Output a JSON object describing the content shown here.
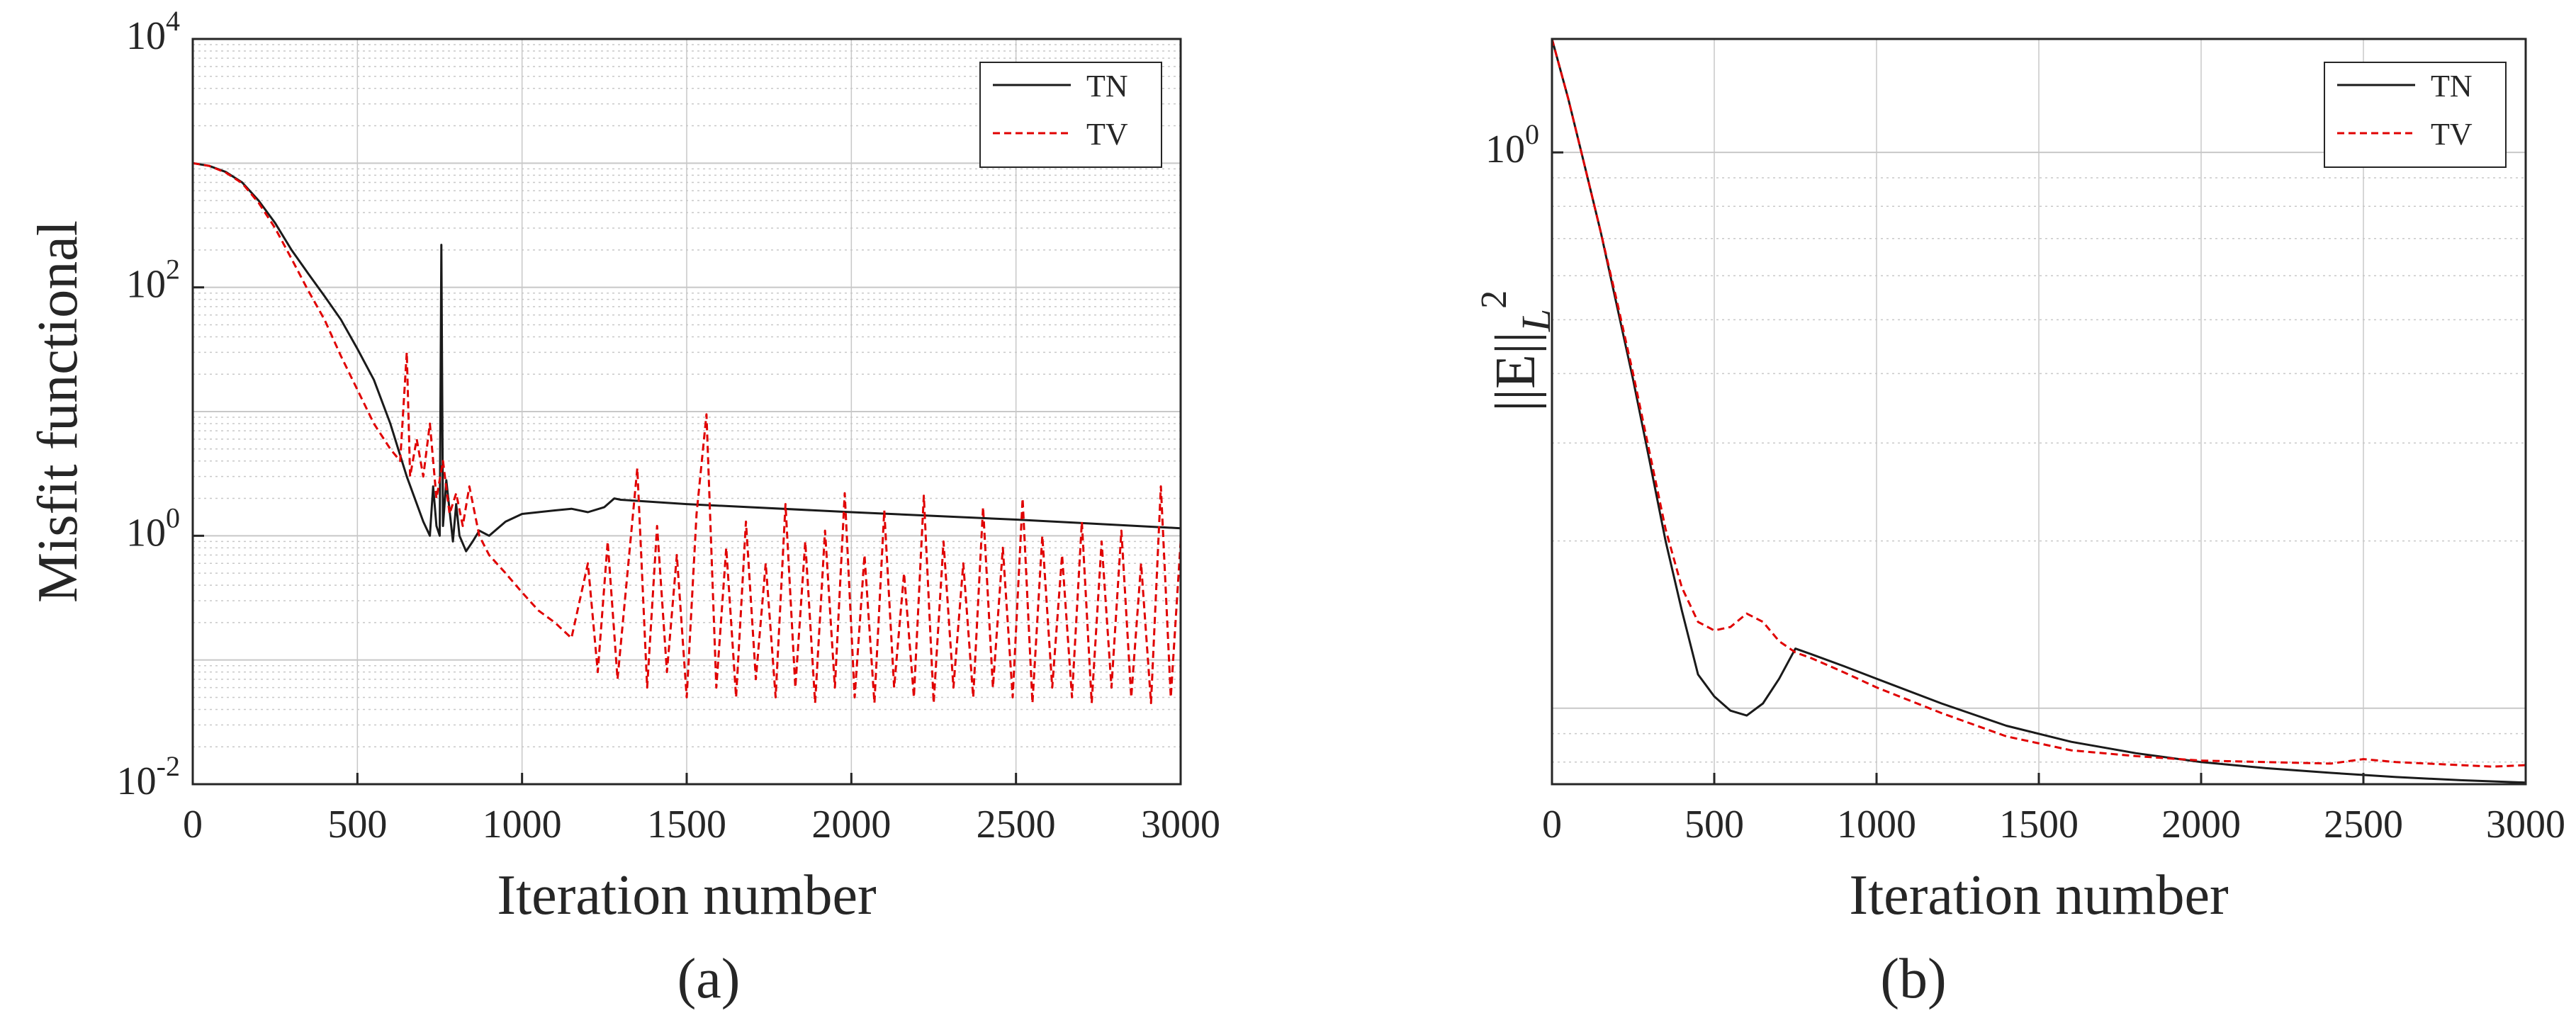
{
  "colors": {
    "tn": "#1a1a1a",
    "tv": "#e00000",
    "grid": "#c8c8c8",
    "axis": "#262626"
  },
  "panel_labels": [
    "(a)",
    "(b)"
  ],
  "chart_data": [
    {
      "type": "line",
      "scale_y": "log",
      "xlabel": "Iteration number",
      "ylabel": "Misfit functional",
      "xlim": [
        0,
        3000
      ],
      "ylim": [
        0.01,
        10000
      ],
      "xticks": [
        0,
        500,
        1000,
        1500,
        2000,
        2500,
        3000
      ],
      "xtick_labels": [
        "0",
        "500",
        "1000",
        "1500",
        "2000",
        "2500",
        "3000"
      ],
      "yticks": [
        {
          "value": 0.01,
          "base": "10",
          "exp": "-2"
        },
        {
          "value": 1,
          "base": "10",
          "exp": "0"
        },
        {
          "value": 100,
          "base": "10",
          "exp": "2"
        },
        {
          "value": 10000,
          "base": "10",
          "exp": "4"
        }
      ],
      "legend": {
        "position": "top-right",
        "entries": [
          "TN",
          "TV"
        ]
      },
      "series": [
        {
          "name": "TN",
          "style": "solid",
          "x": [
            0,
            50,
            100,
            150,
            200,
            250,
            300,
            350,
            400,
            450,
            500,
            550,
            600,
            650,
            700,
            720,
            730,
            740,
            750,
            755,
            760,
            770,
            790,
            800,
            810,
            830,
            850,
            870,
            900,
            950,
            1000,
            1050,
            1100,
            1150,
            1200,
            1250,
            1280,
            1300,
            1500,
            2000,
            2500,
            3000
          ],
          "y": [
            1000,
            950,
            850,
            700,
            500,
            330,
            200,
            130,
            85,
            55,
            32,
            18,
            8,
            3,
            1.3,
            1.0,
            2.5,
            1.2,
            1.0,
            220,
            1.2,
            2.8,
            0.9,
            1.8,
            1.0,
            0.75,
            0.9,
            1.1,
            1.0,
            1.3,
            1.5,
            1.55,
            1.6,
            1.65,
            1.55,
            1.7,
            2.0,
            1.95,
            1.8,
            1.55,
            1.35,
            1.15
          ]
        },
        {
          "name": "TV",
          "style": "dashed",
          "x": [
            0,
            50,
            100,
            150,
            200,
            250,
            300,
            350,
            400,
            450,
            500,
            550,
            600,
            630,
            650,
            660,
            680,
            700,
            720,
            740,
            760,
            780,
            800,
            820,
            840,
            870,
            900,
            950,
            1000,
            1050,
            1100,
            1150,
            1200,
            1230,
            1260,
            1290,
            1320,
            1350,
            1380,
            1410,
            1440,
            1470,
            1500,
            1530,
            1560,
            1590,
            1620,
            1650,
            1680,
            1710,
            1740,
            1770,
            1800,
            1830,
            1860,
            1890,
            1920,
            1950,
            1980,
            2010,
            2040,
            2070,
            2100,
            2130,
            2160,
            2190,
            2220,
            2250,
            2280,
            2310,
            2340,
            2370,
            2400,
            2430,
            2460,
            2490,
            2520,
            2550,
            2580,
            2610,
            2640,
            2670,
            2700,
            2730,
            2760,
            2790,
            2820,
            2850,
            2880,
            2910,
            2940,
            2970,
            3000
          ],
          "y": [
            1000,
            950,
            840,
            690,
            480,
            300,
            170,
            95,
            55,
            28,
            15,
            8,
            5,
            4,
            30,
            3,
            6,
            3,
            8,
            2,
            4,
            1.5,
            2.2,
            1.2,
            2.5,
            1.0,
            0.7,
            0.5,
            0.35,
            0.25,
            0.2,
            0.15,
            0.6,
            0.08,
            0.9,
            0.07,
            0.5,
            3.5,
            0.06,
            1.2,
            0.08,
            0.7,
            0.05,
            1.5,
            9.5,
            0.06,
            0.8,
            0.05,
            1.3,
            0.07,
            0.6,
            0.05,
            1.8,
            0.06,
            0.9,
            0.045,
            1.1,
            0.06,
            2.2,
            0.05,
            0.7,
            0.045,
            1.6,
            0.06,
            0.5,
            0.05,
            2.1,
            0.045,
            0.9,
            0.06,
            0.6,
            0.05,
            1.7,
            0.06,
            0.8,
            0.05,
            2.0,
            0.045,
            1.0,
            0.06,
            0.7,
            0.05,
            1.3,
            0.045,
            0.9,
            0.06,
            1.1,
            0.05,
            0.6,
            0.045,
            2.5,
            0.05,
            0.9
          ]
        }
      ]
    },
    {
      "type": "line",
      "scale_y": "log",
      "xlabel": "Iteration number",
      "ylabel_parts": [
        "||E||",
        "L",
        "2"
      ],
      "xlim": [
        0,
        3000
      ],
      "ylim": [
        0.073,
        1.6
      ],
      "xticks": [
        0,
        500,
        1000,
        1500,
        2000,
        2500,
        3000
      ],
      "xtick_labels": [
        "0",
        "500",
        "1000",
        "1500",
        "2000",
        "2500",
        "3000"
      ],
      "yticks": [
        {
          "value": 1,
          "base": "10",
          "exp": "0"
        }
      ],
      "legend": {
        "position": "top-right",
        "entries": [
          "TN",
          "TV"
        ]
      },
      "series": [
        {
          "name": "TN",
          "style": "solid",
          "x": [
            0,
            50,
            100,
            150,
            200,
            250,
            300,
            350,
            400,
            450,
            500,
            550,
            600,
            650,
            700,
            750,
            800,
            900,
            1000,
            1200,
            1400,
            1600,
            1800,
            2000,
            2200,
            2400,
            2600,
            2800,
            3000
          ],
          "y": [
            1.6,
            1.25,
            0.95,
            0.72,
            0.53,
            0.39,
            0.28,
            0.2,
            0.15,
            0.115,
            0.105,
            0.099,
            0.097,
            0.102,
            0.113,
            0.128,
            0.125,
            0.119,
            0.113,
            0.102,
            0.093,
            0.087,
            0.083,
            0.08,
            0.078,
            0.0765,
            0.0752,
            0.0742,
            0.0735
          ]
        },
        {
          "name": "TV",
          "style": "dashed",
          "x": [
            0,
            50,
            100,
            150,
            200,
            250,
            300,
            350,
            400,
            450,
            500,
            550,
            600,
            650,
            700,
            750,
            800,
            900,
            1000,
            1200,
            1400,
            1600,
            1800,
            2000,
            2200,
            2400,
            2500,
            2550,
            2600,
            2700,
            2800,
            2900,
            3000
          ],
          "y": [
            1.6,
            1.25,
            0.95,
            0.72,
            0.54,
            0.4,
            0.29,
            0.21,
            0.165,
            0.143,
            0.138,
            0.14,
            0.148,
            0.143,
            0.132,
            0.126,
            0.123,
            0.116,
            0.109,
            0.098,
            0.089,
            0.084,
            0.082,
            0.0805,
            0.08,
            0.0795,
            0.081,
            0.0805,
            0.08,
            0.0795,
            0.079,
            0.0785,
            0.079
          ]
        }
      ]
    }
  ]
}
